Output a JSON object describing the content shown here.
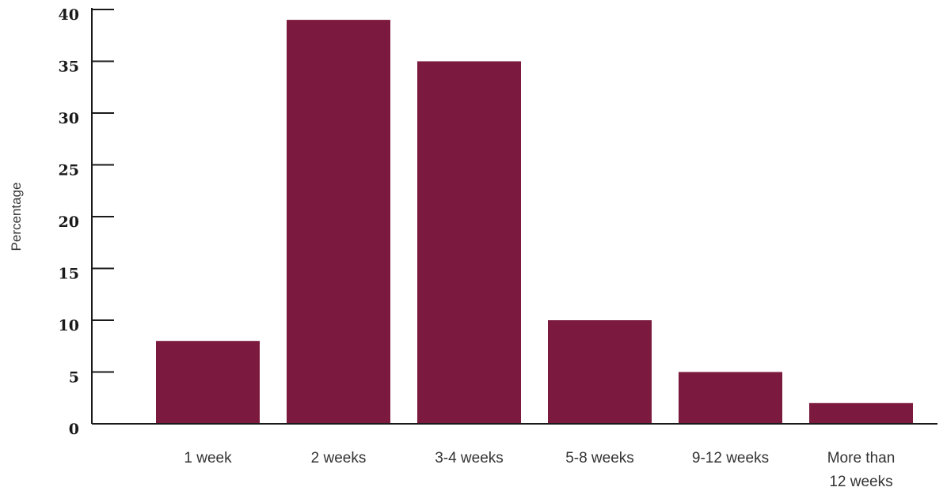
{
  "chart_data": {
    "type": "bar",
    "categories": [
      [
        "1 week"
      ],
      [
        "2 weeks"
      ],
      [
        "3-4 weeks"
      ],
      [
        "5-8 weeks"
      ],
      [
        "9-12 weeks"
      ],
      [
        "More than",
        "12 weeks"
      ]
    ],
    "values": [
      8,
      39,
      35,
      10,
      5,
      2
    ],
    "ylabel": "Percentage",
    "ylim": [
      0,
      40
    ],
    "yticks": [
      "0",
      "5",
      "10",
      "15",
      "20",
      "25",
      "30",
      "35",
      "40"
    ],
    "grid": false,
    "bar_color": "#7b1a3e",
    "axis_color": "#1a1a1a"
  }
}
